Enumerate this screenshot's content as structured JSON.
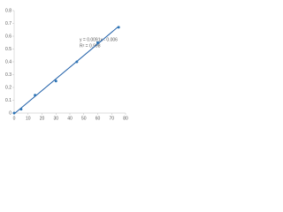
{
  "chart_data": {
    "type": "scatter",
    "series": [
      {
        "color": "#2e75b6",
        "x": [
          0,
          5,
          15,
          30,
          45,
          60,
          75
        ],
        "values": [
          0.0,
          0.03,
          0.14,
          0.25,
          0.4,
          0.55,
          0.67
        ]
      }
    ],
    "trendline": {
      "slope": 0.0091,
      "intercept": -0.006,
      "color": "#1f5fa8",
      "label": "y = 0.0091x - 0.006",
      "r2_label": "R² = 0.998"
    },
    "xlim": [
      0,
      80
    ],
    "xticks": [
      0,
      10,
      20,
      30,
      40,
      50,
      60,
      70,
      80
    ],
    "ylim": [
      0,
      0.8
    ],
    "yticks": [
      0,
      0.1,
      0.2,
      0.3,
      0.4,
      0.5,
      0.6,
      0.7,
      0.8
    ]
  }
}
